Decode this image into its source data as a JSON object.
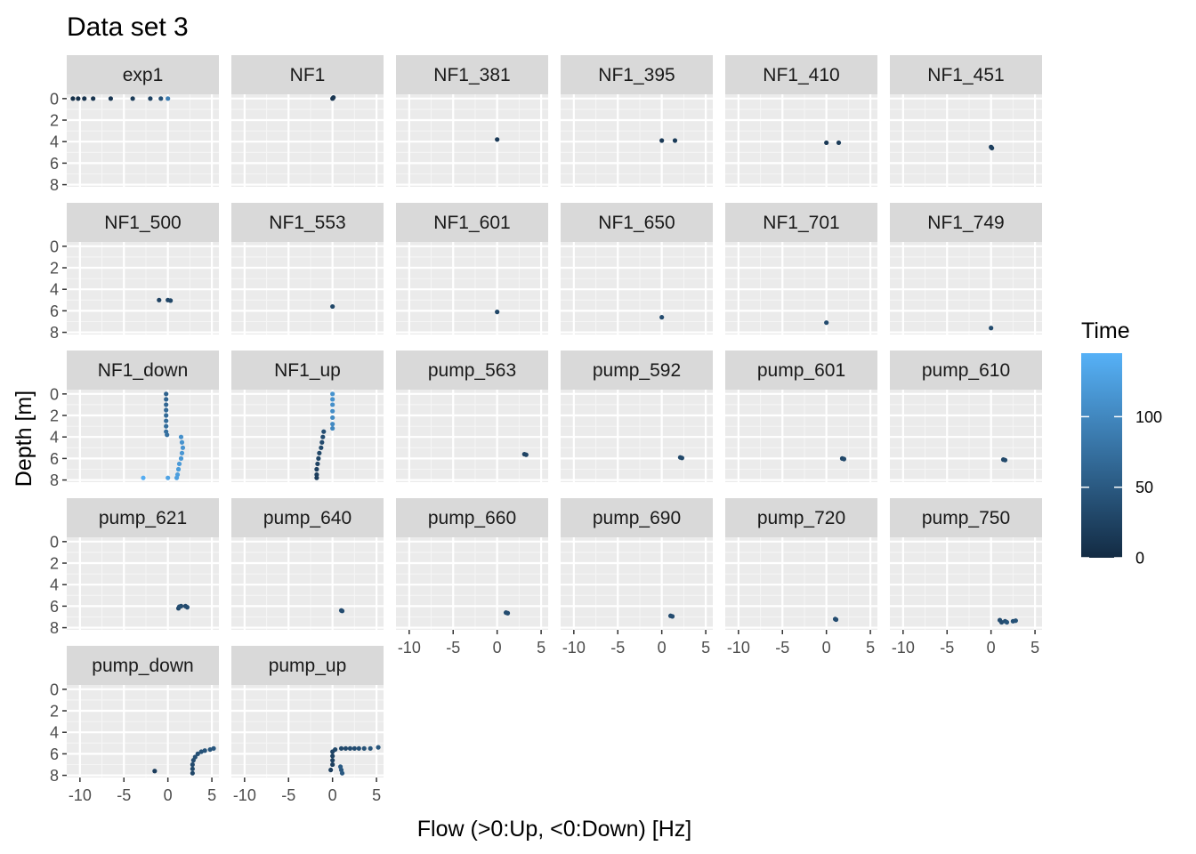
{
  "chart_data": {
    "type": "scatter",
    "title": "Data set 3",
    "xlabel": "Flow (>0:Up, <0:Down) [Hz]",
    "ylabel": "Depth [m]",
    "xlim": [
      -11.5,
      5.8
    ],
    "ylim": [
      8.2,
      -0.4
    ],
    "x_ticks": [
      -10,
      -5,
      0,
      5
    ],
    "y_ticks": [
      0,
      2,
      4,
      6,
      8
    ],
    "grid": true,
    "legend": {
      "title": "Time",
      "position": "right",
      "ticks": [
        0,
        50,
        100
      ],
      "range": [
        0,
        145
      ],
      "low_color": "#132B43",
      "high_color": "#56B1F7"
    },
    "panels": [
      {
        "name": "exp1",
        "points": [
          [
            -10.8,
            0,
            5
          ],
          [
            -10.2,
            0,
            6
          ],
          [
            -9.5,
            0,
            8
          ],
          [
            -8.5,
            0,
            10
          ],
          [
            -6.5,
            0,
            12
          ],
          [
            -4,
            0,
            18
          ],
          [
            -2,
            0,
            25
          ],
          [
            -0.8,
            0,
            40
          ],
          [
            0,
            0,
            90
          ]
        ]
      },
      {
        "name": "NF1",
        "points": [
          [
            0,
            0,
            10
          ],
          [
            0.1,
            -0.1,
            12
          ]
        ]
      },
      {
        "name": "NF1_381",
        "points": [
          [
            0,
            3.8,
            15
          ]
        ]
      },
      {
        "name": "NF1_395",
        "points": [
          [
            0,
            3.9,
            15
          ],
          [
            1.5,
            3.9,
            18
          ]
        ]
      },
      {
        "name": "NF1_410",
        "points": [
          [
            0,
            4.1,
            15
          ],
          [
            1.4,
            4.1,
            18
          ]
        ]
      },
      {
        "name": "NF1_451",
        "points": [
          [
            0,
            4.5,
            20
          ],
          [
            0.1,
            4.6,
            22
          ]
        ]
      },
      {
        "name": "NF1_500",
        "points": [
          [
            -1,
            5,
            25
          ],
          [
            0,
            5,
            28
          ],
          [
            0.3,
            5.05,
            30
          ]
        ]
      },
      {
        "name": "NF1_553",
        "points": [
          [
            0,
            5.6,
            30
          ]
        ]
      },
      {
        "name": "NF1_601",
        "points": [
          [
            0,
            6.1,
            30
          ]
        ]
      },
      {
        "name": "NF1_650",
        "points": [
          [
            0,
            6.6,
            35
          ]
        ]
      },
      {
        "name": "NF1_701",
        "points": [
          [
            0,
            7.1,
            35
          ]
        ]
      },
      {
        "name": "NF1_749",
        "points": [
          [
            0,
            7.6,
            35
          ]
        ]
      },
      {
        "name": "NF1_down",
        "points": [
          [
            -0.2,
            0,
            60
          ],
          [
            -0.2,
            0.5,
            62
          ],
          [
            -0.2,
            1,
            64
          ],
          [
            -0.2,
            1.5,
            66
          ],
          [
            -0.2,
            2,
            68
          ],
          [
            -0.2,
            2.5,
            70
          ],
          [
            -0.2,
            3,
            72
          ],
          [
            -0.2,
            3.5,
            74
          ],
          [
            -0.1,
            3.8,
            76
          ],
          [
            1.5,
            4,
            110
          ],
          [
            1.6,
            4.5,
            112
          ],
          [
            1.7,
            5,
            114
          ],
          [
            1.6,
            5.5,
            116
          ],
          [
            1.5,
            6,
            118
          ],
          [
            1.3,
            6.5,
            120
          ],
          [
            1.2,
            7,
            122
          ],
          [
            1.1,
            7.5,
            124
          ],
          [
            1,
            7.8,
            126
          ],
          [
            0,
            7.8,
            130
          ],
          [
            -2.8,
            7.8,
            140
          ]
        ]
      },
      {
        "name": "NF1_up",
        "points": [
          [
            -1.8,
            7.8,
            20
          ],
          [
            -1.8,
            7.5,
            22
          ],
          [
            -1.8,
            7,
            24
          ],
          [
            -1.7,
            6.5,
            26
          ],
          [
            -1.6,
            6,
            28
          ],
          [
            -1.5,
            5.5,
            30
          ],
          [
            -1.3,
            5,
            32
          ],
          [
            -1.2,
            4.5,
            34
          ],
          [
            -1.1,
            4,
            36
          ],
          [
            -1,
            3.5,
            38
          ],
          [
            0,
            3.2,
            100
          ],
          [
            0,
            2.8,
            102
          ],
          [
            0,
            2.2,
            104
          ],
          [
            0,
            1.6,
            106
          ],
          [
            0,
            1,
            108
          ],
          [
            0,
            0.5,
            110
          ],
          [
            0,
            0,
            112
          ]
        ]
      },
      {
        "name": "pump_563",
        "points": [
          [
            3.1,
            5.6,
            25
          ],
          [
            3.3,
            5.65,
            27
          ]
        ]
      },
      {
        "name": "pump_592",
        "points": [
          [
            2.1,
            5.9,
            30
          ],
          [
            2.3,
            5.95,
            32
          ]
        ]
      },
      {
        "name": "pump_601",
        "points": [
          [
            1.8,
            6,
            30
          ],
          [
            2,
            6.05,
            32
          ]
        ]
      },
      {
        "name": "pump_610",
        "points": [
          [
            1.4,
            6.1,
            30
          ],
          [
            1.6,
            6.15,
            32
          ]
        ]
      },
      {
        "name": "pump_621",
        "points": [
          [
            1.2,
            6.2,
            30
          ],
          [
            1.5,
            6,
            32
          ],
          [
            2,
            6,
            34
          ],
          [
            2.2,
            6.1,
            36
          ],
          [
            1.3,
            6.05,
            38
          ]
        ]
      },
      {
        "name": "pump_640",
        "points": [
          [
            1,
            6.4,
            35
          ],
          [
            1.1,
            6.45,
            36
          ]
        ]
      },
      {
        "name": "pump_660",
        "points": [
          [
            1,
            6.6,
            35
          ],
          [
            1.2,
            6.65,
            36
          ]
        ]
      },
      {
        "name": "pump_690",
        "points": [
          [
            1,
            6.9,
            35
          ],
          [
            1.2,
            6.95,
            36
          ]
        ]
      },
      {
        "name": "pump_720",
        "points": [
          [
            1,
            7.2,
            35
          ],
          [
            1.1,
            7.25,
            36
          ]
        ]
      },
      {
        "name": "pump_750",
        "points": [
          [
            1,
            7.3,
            35
          ],
          [
            1.2,
            7.5,
            36
          ],
          [
            1.6,
            7.4,
            38
          ],
          [
            2.5,
            7.4,
            40
          ],
          [
            2.8,
            7.35,
            42
          ],
          [
            1.8,
            7.5,
            44
          ]
        ]
      },
      {
        "name": "pump_down",
        "points": [
          [
            -1.5,
            7.6,
            20
          ],
          [
            2.8,
            7.8,
            30
          ],
          [
            2.8,
            7.4,
            32
          ],
          [
            2.8,
            7,
            34
          ],
          [
            2.9,
            6.6,
            36
          ],
          [
            3.1,
            6.3,
            38
          ],
          [
            3.4,
            6,
            40
          ],
          [
            3.8,
            5.8,
            42
          ],
          [
            4.2,
            5.7,
            44
          ],
          [
            4.8,
            5.6,
            46
          ],
          [
            5.2,
            5.5,
            48
          ]
        ]
      },
      {
        "name": "pump_up",
        "points": [
          [
            -0.2,
            7.5,
            20
          ],
          [
            0,
            7,
            22
          ],
          [
            0,
            6.6,
            24
          ],
          [
            0,
            6.2,
            26
          ],
          [
            0,
            5.8,
            28
          ],
          [
            0.3,
            5.6,
            30
          ],
          [
            1,
            5.5,
            32
          ],
          [
            1.5,
            5.5,
            34
          ],
          [
            2,
            5.5,
            36
          ],
          [
            2.5,
            5.5,
            38
          ],
          [
            3,
            5.5,
            40
          ],
          [
            3.6,
            5.5,
            42
          ],
          [
            4.3,
            5.5,
            44
          ],
          [
            5.2,
            5.4,
            46
          ],
          [
            1,
            7.5,
            48
          ],
          [
            1.1,
            7.8,
            50
          ],
          [
            0.9,
            7.2,
            52
          ]
        ]
      }
    ]
  }
}
